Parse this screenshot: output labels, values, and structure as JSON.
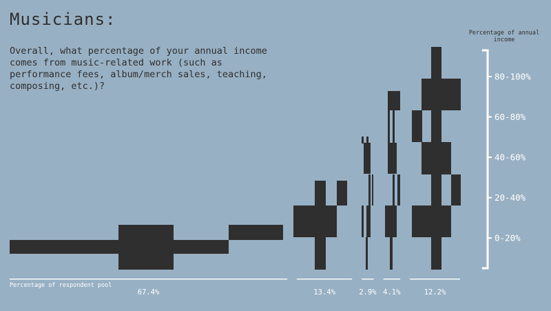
{
  "page": {
    "title": "Musicians:",
    "question": "Overall, what percentage of your annual income comes from music-related work (such as performance fees, album/merch sales, teaching, composing, etc.)?",
    "axis_title": "Percentage of annual income",
    "pool_label": "Percentage of respondent pool"
  },
  "colors": {
    "background": "#98b0c3",
    "bars": "#2f2f2f",
    "axis": "#ffffff"
  },
  "chart_data": {
    "type": "bar",
    "title": "Musicians:",
    "xlabel": "Percentage of respondent pool",
    "ylabel": "Percentage of annual income",
    "categories": [
      "0-20%",
      "20-40%",
      "40-60%",
      "60-80%",
      "80-100%"
    ],
    "groups": [
      {
        "label": "67.4%",
        "share": 67.4
      },
      {
        "label": "13.4%",
        "share": 13.4
      },
      {
        "label": "2.9%",
        "share": 2.9
      },
      {
        "label": "4.1%",
        "share": 4.1
      },
      {
        "label": "12.2%",
        "share": 12.2
      }
    ],
    "legend": "none",
    "grid": false
  }
}
